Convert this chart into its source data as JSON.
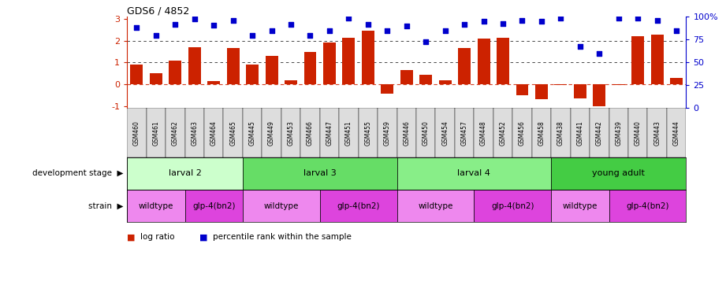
{
  "title": "GDS6 / 4852",
  "samples": [
    "GSM460",
    "GSM461",
    "GSM462",
    "GSM463",
    "GSM464",
    "GSM465",
    "GSM445",
    "GSM449",
    "GSM453",
    "GSM466",
    "GSM447",
    "GSM451",
    "GSM455",
    "GSM459",
    "GSM446",
    "GSM450",
    "GSM454",
    "GSM457",
    "GSM448",
    "GSM452",
    "GSM456",
    "GSM458",
    "GSM438",
    "GSM441",
    "GSM442",
    "GSM439",
    "GSM440",
    "GSM443",
    "GSM444"
  ],
  "log_ratio": [
    0.9,
    0.5,
    1.1,
    1.7,
    0.15,
    1.65,
    0.9,
    1.3,
    0.17,
    1.5,
    1.93,
    2.15,
    2.45,
    -0.45,
    0.65,
    0.45,
    0.2,
    1.65,
    2.1,
    2.15,
    -0.5,
    -0.7,
    -0.05,
    -0.65,
    -1.0,
    -0.05,
    2.2,
    2.3,
    0.28
  ],
  "percentile_pct": [
    88,
    80,
    92,
    98,
    91,
    96,
    80,
    85,
    92,
    80,
    85,
    99,
    92,
    85,
    90,
    73,
    85,
    92,
    95,
    93,
    96,
    95,
    99,
    68,
    60,
    99,
    99,
    96,
    85
  ],
  "bar_color": "#cc2200",
  "dot_color": "#0000cc",
  "dev_stages": [
    {
      "label": "larval 2",
      "start": 0,
      "end": 6,
      "color": "#ccffcc"
    },
    {
      "label": "larval 3",
      "start": 6,
      "end": 14,
      "color": "#66dd66"
    },
    {
      "label": "larval 4",
      "start": 14,
      "end": 22,
      "color": "#88ee88"
    },
    {
      "label": "young adult",
      "start": 22,
      "end": 29,
      "color": "#44cc44"
    }
  ],
  "strains": [
    {
      "label": "wildtype",
      "start": 0,
      "end": 3,
      "color": "#ee88ee"
    },
    {
      "label": "glp-4(bn2)",
      "start": 3,
      "end": 6,
      "color": "#dd44dd"
    },
    {
      "label": "wildtype",
      "start": 6,
      "end": 10,
      "color": "#ee88ee"
    },
    {
      "label": "glp-4(bn2)",
      "start": 10,
      "end": 14,
      "color": "#dd44dd"
    },
    {
      "label": "wildtype",
      "start": 14,
      "end": 18,
      "color": "#ee88ee"
    },
    {
      "label": "glp-4(bn2)",
      "start": 18,
      "end": 22,
      "color": "#dd44dd"
    },
    {
      "label": "wildtype",
      "start": 22,
      "end": 25,
      "color": "#ee88ee"
    },
    {
      "label": "glp-4(bn2)",
      "start": 25,
      "end": 29,
      "color": "#dd44dd"
    }
  ],
  "ylim": [
    -1.1,
    3.1
  ],
  "yticks_left": [
    -1,
    0,
    1,
    2,
    3
  ],
  "yticks_right_pct": [
    0,
    25,
    50,
    75,
    100
  ],
  "yticks_right_labels": [
    "0",
    "25",
    "50",
    "75",
    "100%"
  ],
  "bg_color": "#ffffff",
  "tick_label_bg": "#dddddd"
}
